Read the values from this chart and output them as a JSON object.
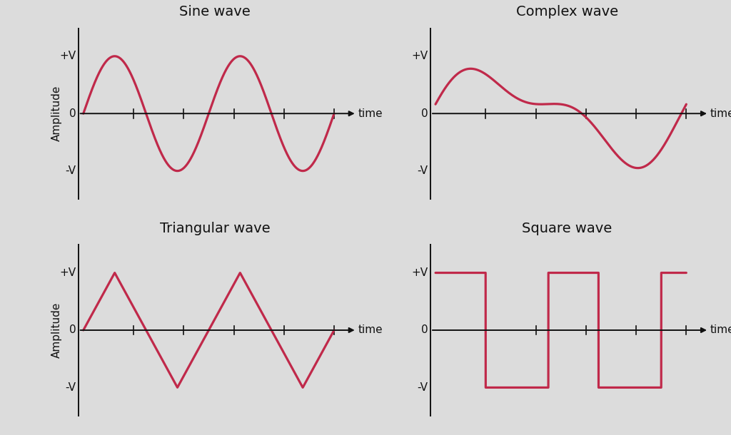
{
  "titles": [
    "Sine wave",
    "Complex wave",
    "Triangular wave",
    "Square wave"
  ],
  "wave_color": "#c0294a",
  "axis_color": "#111111",
  "bg_color": "#dcdcdc",
  "line_width": 2.3,
  "title_fontsize": 14,
  "label_fontsize": 11,
  "tick_label_fontsize": 11,
  "ylabel": "Amplitude",
  "xlabel": "time",
  "ytick_labels": [
    "+V",
    "0",
    "-V"
  ],
  "xlim": [
    0,
    10
  ],
  "ylim": [
    -1.6,
    1.6
  ]
}
